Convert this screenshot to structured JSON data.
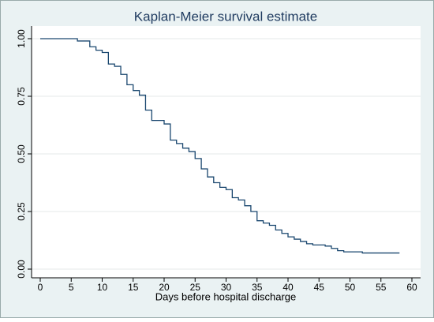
{
  "chart_data": {
    "type": "step",
    "title": "Kaplan-Meier survival estimate",
    "x_label": "Days before hospital discharge",
    "x": [
      0,
      6,
      8,
      9,
      10,
      11,
      12,
      13,
      14,
      15,
      16,
      17,
      18,
      20,
      21,
      22,
      23,
      24,
      25,
      26,
      27,
      28,
      29,
      30,
      31,
      32,
      33,
      34,
      35,
      36,
      37,
      38,
      39,
      40,
      41,
      42,
      43,
      44,
      46,
      47,
      48,
      49,
      52,
      58
    ],
    "values": [
      1.0,
      0.99,
      0.965,
      0.95,
      0.94,
      0.89,
      0.88,
      0.845,
      0.8,
      0.775,
      0.755,
      0.69,
      0.645,
      0.63,
      0.56,
      0.545,
      0.525,
      0.51,
      0.48,
      0.435,
      0.4,
      0.375,
      0.355,
      0.345,
      0.31,
      0.3,
      0.275,
      0.25,
      0.21,
      0.2,
      0.19,
      0.17,
      0.155,
      0.14,
      0.13,
      0.12,
      0.11,
      0.105,
      0.1,
      0.09,
      0.08,
      0.075,
      0.07,
      0.07
    ],
    "color": "#1a476f",
    "xlim": [
      0,
      60
    ],
    "xticks": [
      0,
      5,
      10,
      15,
      20,
      25,
      30,
      35,
      40,
      45,
      50,
      55,
      60
    ],
    "ylim": [
      0,
      1
    ],
    "yticks": [
      {
        "value": 0,
        "label": "0.00"
      },
      {
        "value": 0.25,
        "label": "0.25"
      },
      {
        "value": 0.5,
        "label": "0.50"
      },
      {
        "value": 0.75,
        "label": "0.75"
      },
      {
        "value": 1,
        "label": "1.00"
      }
    ],
    "grid": true
  }
}
